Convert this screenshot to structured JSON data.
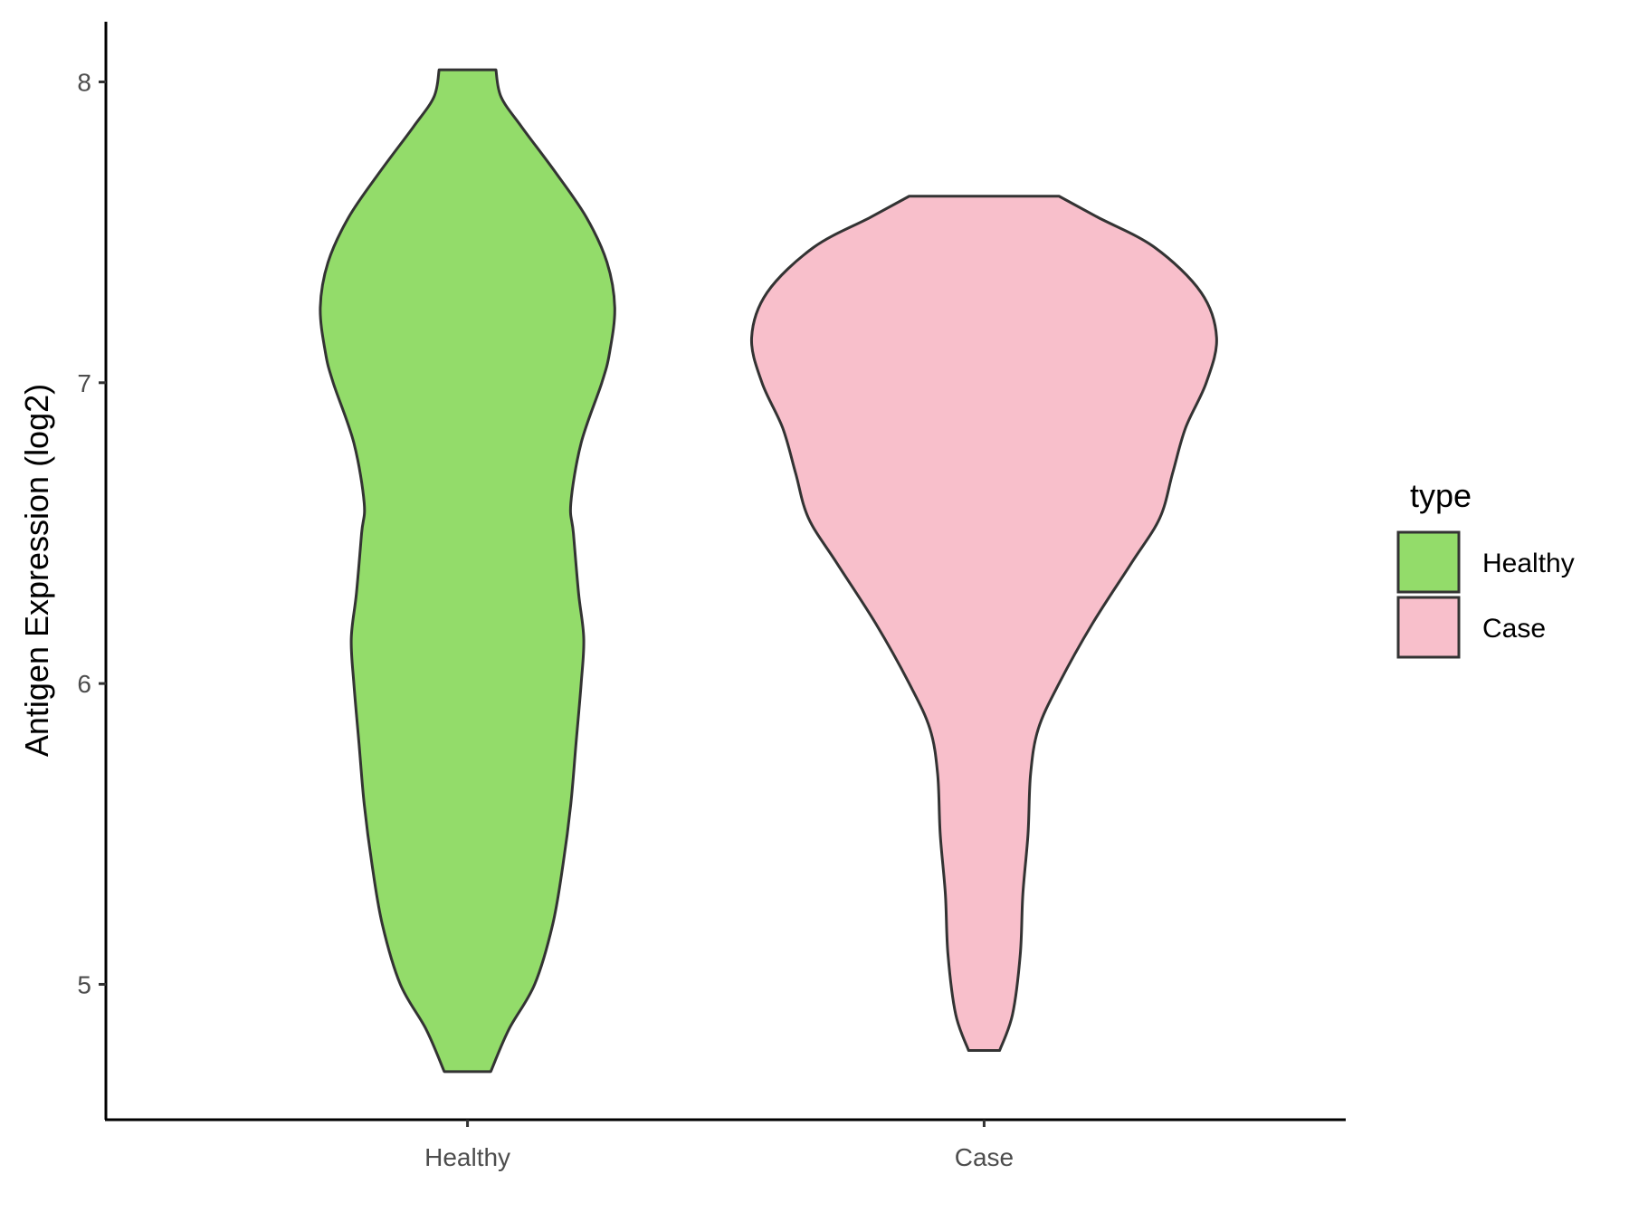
{
  "chart_data": {
    "type": "violin",
    "title": "",
    "xlabel": "",
    "ylabel": "Antigen Expression (log2)",
    "ylim": [
      4.55,
      8.2
    ],
    "yticks": [
      5,
      6,
      7,
      8
    ],
    "categories": [
      "Healthy",
      "Case"
    ],
    "grid": false,
    "legend": {
      "title": "type",
      "position": "right",
      "entries": [
        {
          "label": "Healthy",
          "color": "#93dc6a"
        },
        {
          "label": "Case",
          "color": "#f8bfcb"
        }
      ]
    },
    "series": [
      {
        "category": "Healthy",
        "color": "#93dc6a",
        "min": 4.71,
        "max": 8.04,
        "half_width_profile": [
          [
            4.71,
            0.09
          ],
          [
            4.85,
            0.16
          ],
          [
            5.0,
            0.26
          ],
          [
            5.2,
            0.33
          ],
          [
            5.4,
            0.37
          ],
          [
            5.6,
            0.4
          ],
          [
            5.8,
            0.42
          ],
          [
            6.0,
            0.44
          ],
          [
            6.15,
            0.45
          ],
          [
            6.3,
            0.43
          ],
          [
            6.5,
            0.41
          ],
          [
            6.6,
            0.4
          ],
          [
            6.8,
            0.44
          ],
          [
            7.0,
            0.52
          ],
          [
            7.1,
            0.55
          ],
          [
            7.25,
            0.57
          ],
          [
            7.4,
            0.54
          ],
          [
            7.55,
            0.46
          ],
          [
            7.7,
            0.34
          ],
          [
            7.85,
            0.21
          ],
          [
            7.95,
            0.13
          ],
          [
            8.04,
            0.11
          ]
        ]
      },
      {
        "category": "Case",
        "color": "#f8bfcb",
        "min": 4.78,
        "max": 7.62,
        "half_width_profile": [
          [
            4.78,
            0.06
          ],
          [
            4.9,
            0.11
          ],
          [
            5.1,
            0.14
          ],
          [
            5.3,
            0.15
          ],
          [
            5.5,
            0.17
          ],
          [
            5.7,
            0.18
          ],
          [
            5.85,
            0.21
          ],
          [
            6.0,
            0.29
          ],
          [
            6.2,
            0.42
          ],
          [
            6.4,
            0.57
          ],
          [
            6.55,
            0.68
          ],
          [
            6.7,
            0.73
          ],
          [
            6.85,
            0.78
          ],
          [
            7.0,
            0.86
          ],
          [
            7.15,
            0.9
          ],
          [
            7.3,
            0.84
          ],
          [
            7.45,
            0.66
          ],
          [
            7.55,
            0.44
          ],
          [
            7.62,
            0.29
          ]
        ]
      }
    ]
  }
}
